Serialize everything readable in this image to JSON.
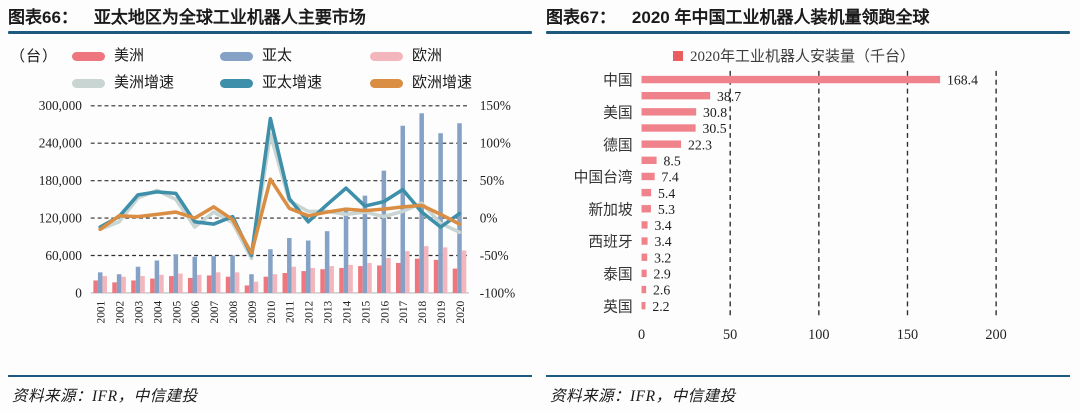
{
  "left_panel": {
    "fig_label": "图表66：",
    "title": "亚太地区为全球工业机器人主要市场",
    "source": "资料来源：IFR，中信建投"
  },
  "right_panel": {
    "fig_label": "图表67：",
    "title": "2020 年中国工业机器人装机量领跑全球",
    "source": "资料来源：IFR，中信建投"
  },
  "colors": {
    "title_rule": "#1E5A7E",
    "americas_bar": "#EE767E",
    "apac_bar": "#85A1C6",
    "europe_bar": "#F4B6BD",
    "americas_growth_line": "#C8D5D2",
    "apac_growth_line": "#3E8FA9",
    "europe_growth_line": "#D98E44",
    "install_bar": "#F0828B",
    "legend_marker_red": "#E85D5D",
    "gridline": "#2e2e2e"
  },
  "chart_data": [
    {
      "type": "bar+line-combo",
      "unit_label": "（台）",
      "x": [
        "2001",
        "2002",
        "2003",
        "2004",
        "2005",
        "2006",
        "2007",
        "2008",
        "2009",
        "2010",
        "2011",
        "2012",
        "2013",
        "2014",
        "2015",
        "2016",
        "2017",
        "2018",
        "2019",
        "2020"
      ],
      "bar_series": [
        {
          "name": "美洲",
          "color": "#EE767E",
          "axis": "left",
          "values": [
            20000,
            17000,
            20000,
            23000,
            27000,
            24000,
            28000,
            26000,
            12000,
            26000,
            32000,
            35000,
            38000,
            40000,
            43000,
            44000,
            48000,
            55000,
            53000,
            39000
          ]
        },
        {
          "name": "亚太",
          "color": "#85A1C6",
          "axis": "left",
          "values": [
            33000,
            30000,
            42000,
            52000,
            62000,
            58000,
            59000,
            60000,
            30000,
            70000,
            88000,
            84000,
            99000,
            134000,
            156000,
            196000,
            268000,
            288000,
            256000,
            272000
          ]
        },
        {
          "name": "欧洲",
          "color": "#F4B6BD",
          "axis": "left",
          "values": [
            27000,
            26000,
            27000,
            29000,
            31000,
            29000,
            33000,
            33000,
            18000,
            30000,
            42000,
            40000,
            43000,
            45000,
            48000,
            56000,
            67000,
            75000,
            73000,
            68000
          ]
        }
      ],
      "line_series": [
        {
          "name": "美洲增速",
          "color": "#C8D5D2",
          "axis": "right",
          "unit": "%",
          "values": [
            -15,
            -5,
            27,
            37,
            25,
            -12,
            8,
            -6,
            -54,
            112,
            23,
            9,
            9,
            5,
            8,
            2,
            9,
            20,
            -7,
            -19
          ]
        },
        {
          "name": "亚太增速",
          "color": "#3E8FA9",
          "axis": "right",
          "unit": "%",
          "values": [
            -12,
            2,
            31,
            35,
            33,
            -5,
            -8,
            2,
            -50,
            133,
            26,
            -5,
            18,
            40,
            16,
            22,
            38,
            8,
            -12,
            6
          ]
        },
        {
          "name": "欧洲增速",
          "color": "#D98E44",
          "axis": "right",
          "unit": "%",
          "values": [
            -15,
            3,
            2,
            5,
            8,
            0,
            15,
            -2,
            -47,
            52,
            13,
            3,
            8,
            12,
            10,
            12,
            15,
            17,
            5,
            -8
          ]
        }
      ],
      "y_left": {
        "min": 0,
        "max": 300000,
        "tick_labels": [
          "0",
          "60,000",
          "120,000",
          "180,000",
          "240,000",
          "300,000"
        ]
      },
      "y_right": {
        "min": -100,
        "max": 150,
        "tick_labels": [
          "-100%",
          "-50%",
          "0%",
          "50%",
          "100%",
          "150%"
        ]
      },
      "grid": "dashed-horizontal"
    },
    {
      "type": "bar",
      "orientation": "horizontal",
      "legend_label": "2020年工业机器人安装量（千台）",
      "legend_color": "#E85D5D",
      "bar_color": "#F0828B",
      "categories": [
        "中国",
        "",
        "美国",
        "",
        "德国",
        "",
        "中国台湾",
        "",
        "新加坡",
        "",
        "西班牙",
        "",
        "泰国",
        "",
        "英国"
      ],
      "values": [
        168.4,
        38.7,
        30.8,
        30.5,
        22.3,
        8.5,
        7.4,
        5.4,
        5.3,
        3.4,
        3.4,
        3.2,
        2.9,
        2.6,
        2.2
      ],
      "x_ticks": [
        "0",
        "50",
        "100",
        "150",
        "200"
      ],
      "xlim": [
        0,
        218
      ],
      "grid": "dashed-vertical"
    }
  ]
}
